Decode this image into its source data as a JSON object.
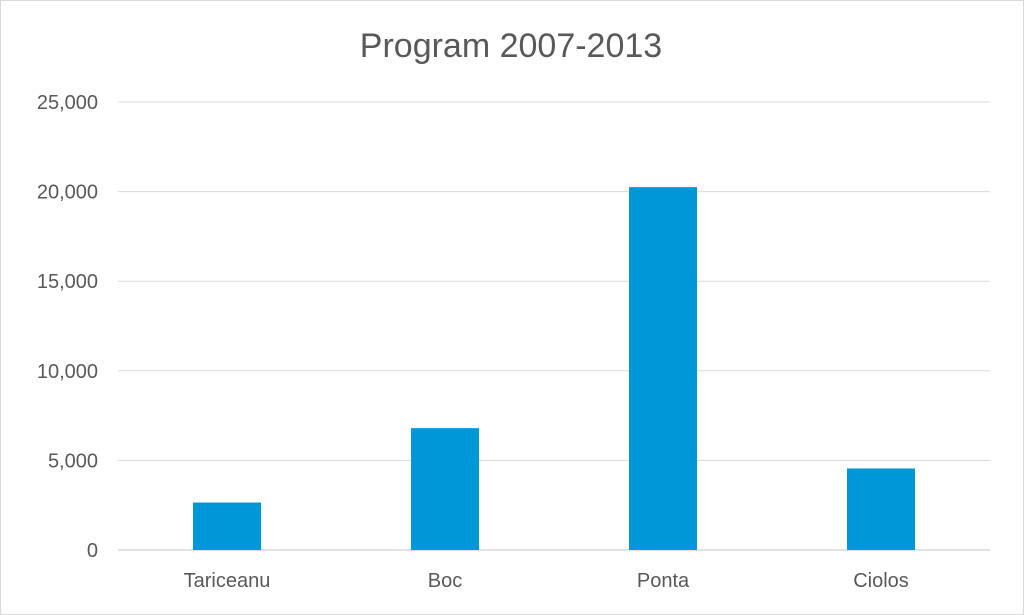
{
  "chart_data": {
    "type": "bar",
    "title": "Program 2007-2013",
    "xlabel": "",
    "ylabel": "",
    "categories": [
      "Tariceanu",
      "Boc",
      "Ponta",
      "Ciolos"
    ],
    "values": [
      2650,
      6800,
      20250,
      4550
    ],
    "ylim": [
      0,
      25000
    ],
    "yticks": [
      0,
      5000,
      10000,
      15000,
      20000,
      25000
    ],
    "ytick_labels": [
      "0",
      "5,000",
      "10,000",
      "15,000",
      "20,000",
      "25,000"
    ],
    "grid": true,
    "legend": "none",
    "bar_color": "#0097d8",
    "grid_color": "#d9d9d9"
  }
}
